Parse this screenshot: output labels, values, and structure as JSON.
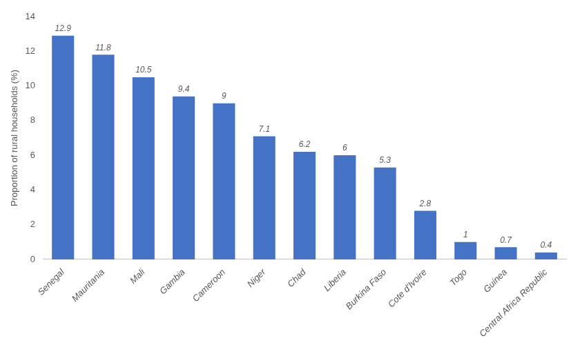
{
  "chart_data": {
    "type": "bar",
    "categories": [
      "Senegal",
      "Mauritania",
      "Mali",
      "Gambia",
      "Cameroon",
      "Niger",
      "Chad",
      "Liberia",
      "Burkina Faso",
      "Cote d'Ivoire",
      "Togo",
      "Guinea",
      "Central Africa Republic"
    ],
    "values": [
      12.9,
      11.8,
      10.5,
      9.4,
      9.0,
      7.1,
      6.2,
      6.0,
      5.3,
      2.8,
      1.0,
      0.7,
      0.4
    ],
    "color": "#4472c4",
    "ylabel": "Proportion of rural households (%)",
    "ylim": [
      0,
      14
    ],
    "yticks": [
      0,
      2,
      4,
      6,
      8,
      10,
      12,
      14
    ],
    "grid": false,
    "data_labels": true
  }
}
